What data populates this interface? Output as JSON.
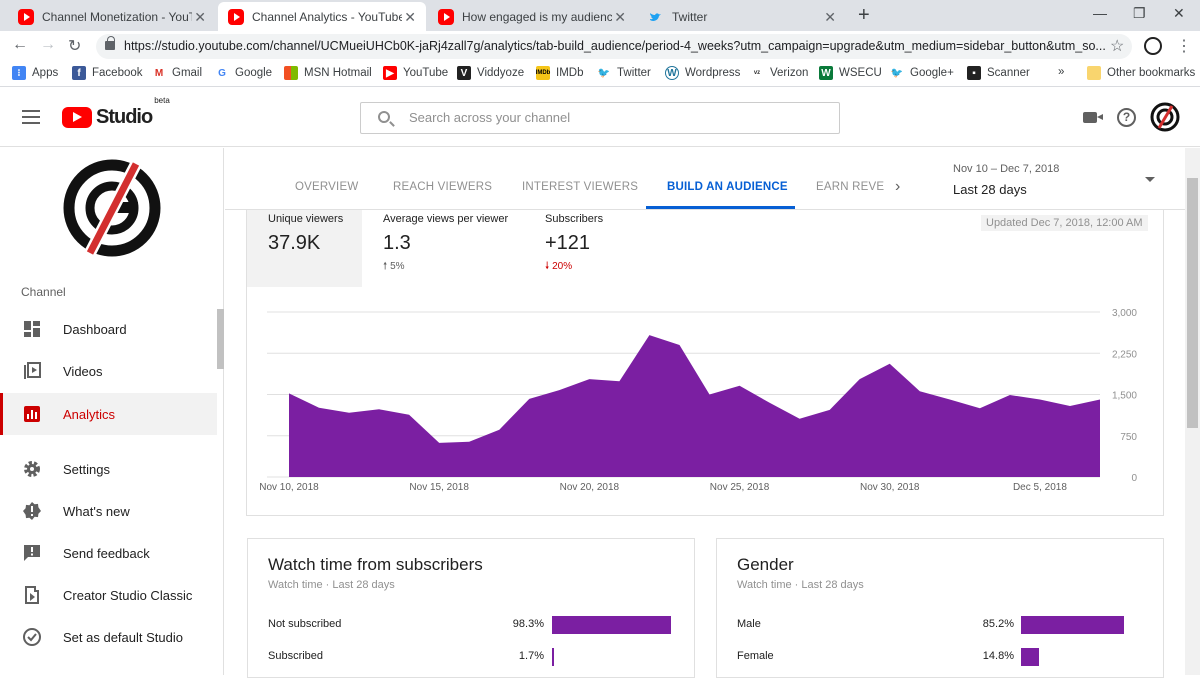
{
  "browser": {
    "tabs": [
      {
        "title": "Channel Monetization - YouTube",
        "icon": "youtube-favicon",
        "active": false
      },
      {
        "title": "Channel Analytics - YouTube Stu",
        "icon": "youtube-favicon",
        "active": true
      },
      {
        "title": "How engaged is my audience? -",
        "icon": "youtube-favicon",
        "active": false
      },
      {
        "title": "Twitter",
        "icon": "twitter-favicon",
        "active": false
      }
    ],
    "url": "https://studio.youtube.com/channel/UCMueiUHCb0K-jaRj4zall7g/analytics/tab-build_audience/period-4_weeks?utm_campaign=upgrade&utm_medium=sidebar_button&utm_so...",
    "bookmarks": [
      {
        "label": "Apps",
        "color": "#4285f4"
      },
      {
        "label": "Facebook",
        "color": "#3b5998"
      },
      {
        "label": "Gmail",
        "color": "#d93025"
      },
      {
        "label": "Google",
        "color": "#4285f4"
      },
      {
        "label": "MSN Hotmail",
        "color": "#00a4ef"
      },
      {
        "label": "YouTube",
        "color": "#ff0000"
      },
      {
        "label": "Viddyoze",
        "color": "#222222"
      },
      {
        "label": "IMDb",
        "color": "#f5c518"
      },
      {
        "label": "Twitter",
        "color": "#1da1f2"
      },
      {
        "label": "Wordpress",
        "color": "#21759b"
      },
      {
        "label": "Verizon",
        "color": "#333333"
      },
      {
        "label": "WSECU",
        "color": "#0a7a3a"
      },
      {
        "label": "Google+",
        "color": "#1da1f2"
      },
      {
        "label": "Scanner",
        "color": "#222222"
      }
    ],
    "bookmarks_overflow": "»",
    "other_bookmarks": "Other bookmarks"
  },
  "header": {
    "logo_text": "Studio",
    "logo_badge": "beta",
    "search_placeholder": "Search across your channel"
  },
  "sidebar": {
    "section_label": "Channel",
    "items": [
      {
        "label": "Dashboard",
        "icon": "dashboard-icon"
      },
      {
        "label": "Videos",
        "icon": "videos-icon"
      },
      {
        "label": "Analytics",
        "icon": "analytics-icon",
        "active": true
      },
      {
        "label": "Settings",
        "icon": "gear-icon"
      },
      {
        "label": "What's new",
        "icon": "alert-icon"
      },
      {
        "label": "Send feedback",
        "icon": "feedback-icon"
      },
      {
        "label": "Creator Studio Classic",
        "icon": "classic-studio-icon"
      },
      {
        "label": "Set as default Studio",
        "icon": "check-circle-icon"
      }
    ]
  },
  "analytics": {
    "tabs": [
      "OVERVIEW",
      "REACH VIEWERS",
      "INTEREST VIEWERS",
      "BUILD AN AUDIENCE",
      "EARN REVE"
    ],
    "active_tab": "BUILD AN AUDIENCE",
    "date_range": {
      "dates": "Nov 10 – Dec 7, 2018",
      "label": "Last 28 days"
    },
    "updated": "Updated Dec 7, 2018, 12:00 AM",
    "metrics": [
      {
        "label": "Unique viewers",
        "value": "37.9K",
        "delta": "",
        "direction": "none"
      },
      {
        "label": "Average views per viewer",
        "value": "1.3",
        "delta": "5%",
        "direction": "up"
      },
      {
        "label": "Subscribers",
        "value": "+121",
        "delta": "20%",
        "direction": "down"
      }
    ]
  },
  "chart_data": {
    "type": "area",
    "x": [
      "Nov 10",
      "Nov 11",
      "Nov 12",
      "Nov 13",
      "Nov 14",
      "Nov 15",
      "Nov 16",
      "Nov 17",
      "Nov 18",
      "Nov 19",
      "Nov 20",
      "Nov 21",
      "Nov 22",
      "Nov 23",
      "Nov 24",
      "Nov 25",
      "Nov 26",
      "Nov 27",
      "Nov 28",
      "Nov 29",
      "Nov 30",
      "Dec 1",
      "Dec 2",
      "Dec 3",
      "Dec 4",
      "Dec 5",
      "Dec 6",
      "Dec 7"
    ],
    "values": [
      1520,
      1260,
      1170,
      1230,
      1130,
      620,
      640,
      860,
      1420,
      1580,
      1780,
      1740,
      2580,
      2400,
      1500,
      1660,
      1350,
      1060,
      1220,
      1780,
      2060,
      1560,
      1410,
      1250,
      1490,
      1410,
      1290,
      1410
    ],
    "xtick_labels": [
      "Nov 10, 2018",
      "Nov 15, 2018",
      "Nov 20, 2018",
      "Nov 25, 2018",
      "Nov 30, 2018",
      "Dec 5, 2018"
    ],
    "ytick_labels": [
      "3,000",
      "2,250",
      "1,500",
      "750",
      "0"
    ],
    "ylim": [
      0,
      3000
    ],
    "color": "#7b1fa2",
    "grid": true
  },
  "cards": [
    {
      "title": "Watch time from subscribers",
      "subtitle": "Watch time · Last 28 days",
      "rows": [
        {
          "label": "Not subscribed",
          "value": "98.3%",
          "fraction": 0.983
        },
        {
          "label": "Subscribed",
          "value": "1.7%",
          "fraction": 0.017
        }
      ]
    },
    {
      "title": "Gender",
      "subtitle": "Watch time · Last 28 days",
      "rows": [
        {
          "label": "Male",
          "value": "85.2%",
          "fraction": 0.852
        },
        {
          "label": "Female",
          "value": "14.8%",
          "fraction": 0.148
        }
      ]
    }
  ],
  "colors": {
    "accent_blue": "#065fd4",
    "active_red": "#cc0000",
    "bar_purple": "#7b1fa2"
  }
}
